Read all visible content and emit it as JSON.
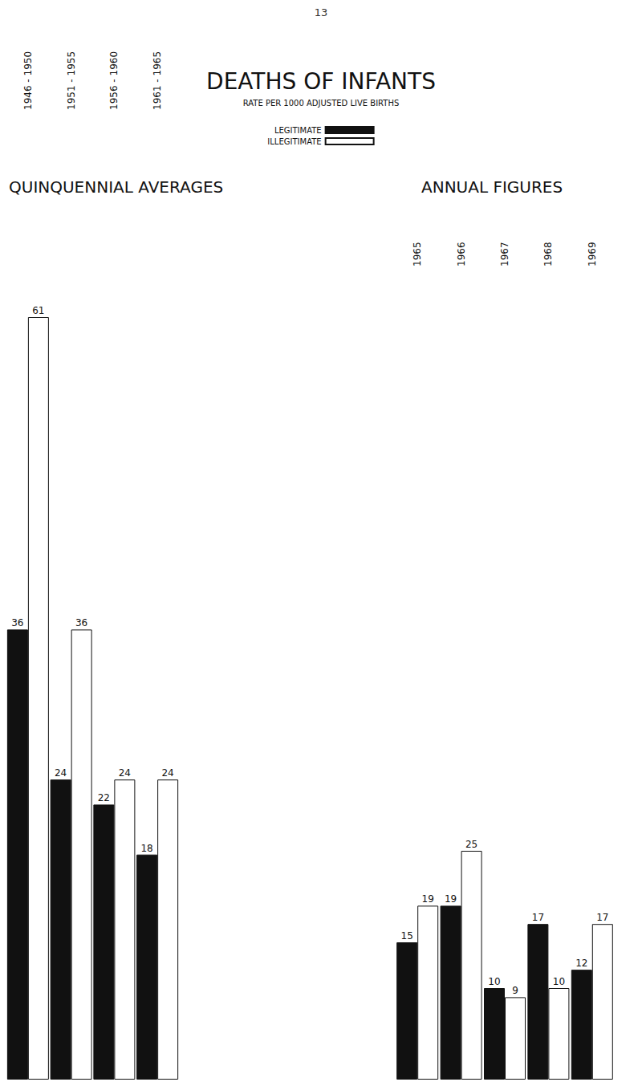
{
  "page": "13",
  "title": "DEATHS OF INFANTS",
  "subtitle": "RATE PER 1000 ADJUSTED LIVE BIRTHS",
  "legend": "top",
  "chart_data": [
    {
      "type": "bar",
      "title": "QUINQUENNIAL AVERAGES",
      "categories": [
        "1946 - 1950",
        "1951 - 1955",
        "1956 - 1960",
        "1961 - 1965"
      ],
      "series": [
        {
          "name": "LEGITIMATE",
          "color": "#111111",
          "values": [
            36,
            24,
            22,
            18
          ]
        },
        {
          "name": "ILLEGITIMATE",
          "color": "#ffffff",
          "values": [
            61,
            36,
            24,
            24
          ]
        }
      ],
      "ylim": [
        0,
        61
      ],
      "yticks": [
        0,
        61
      ],
      "grid": false,
      "data_labels": true,
      "tick_labels": "x"
    },
    {
      "type": "bar",
      "title": "ANNUAL FIGURES",
      "categories": [
        "1965",
        "1966",
        "1967",
        "1968",
        "1969"
      ],
      "series": [
        {
          "name": "LEGITIMATE",
          "color": "#111111",
          "values": [
            15,
            19,
            10,
            17,
            12
          ]
        },
        {
          "name": "ILLEGITIMATE",
          "color": "#ffffff",
          "values": [
            19,
            25,
            9,
            10,
            17
          ]
        }
      ],
      "ylim": [
        0,
        25
      ],
      "yticks": [
        0,
        25
      ],
      "grid": false,
      "data_labels": true,
      "tick_labels": "x"
    }
  ]
}
